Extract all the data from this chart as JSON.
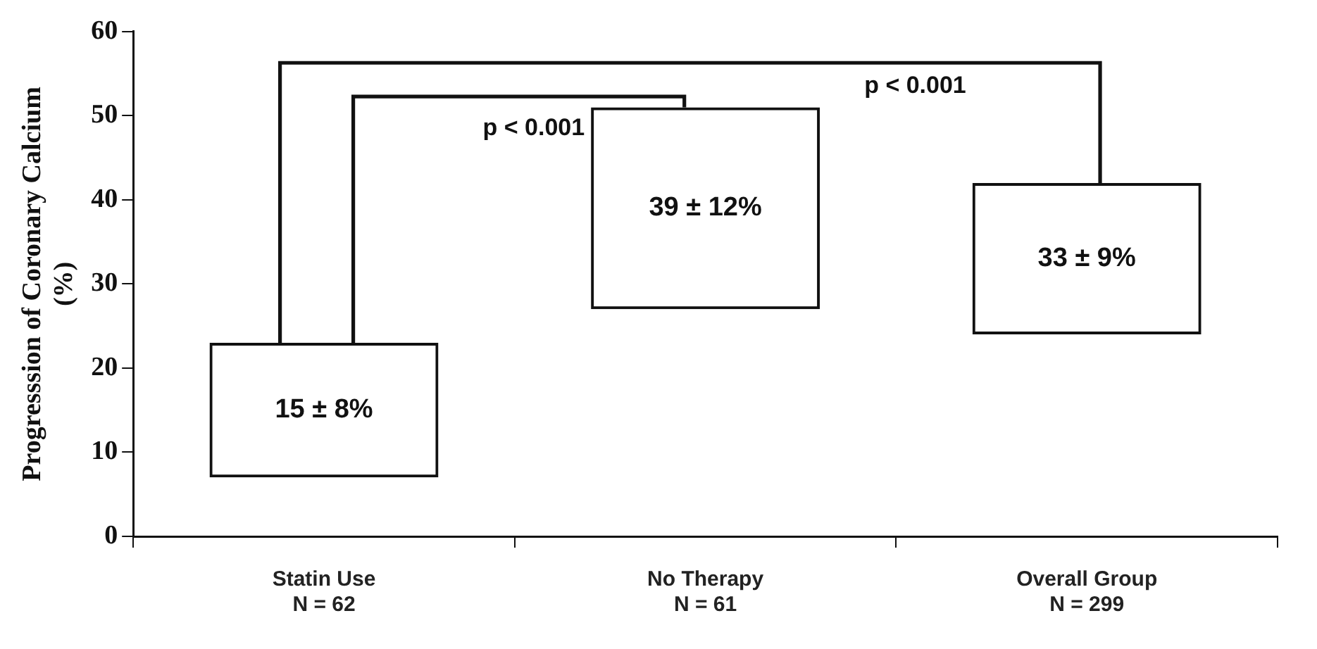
{
  "chart_data": {
    "type": "bar",
    "ylabel": "Progresssion of Coronary Calcium\n(%)",
    "categories": [
      "Statin Use\nN = 62",
      "No Therapy\nN = 61",
      "Overall Group\nN = 299"
    ],
    "base": [
      7,
      27,
      24
    ],
    "values": [
      16,
      24,
      18
    ],
    "color": "#111111",
    "ylim": [
      0,
      60
    ],
    "yticks": [
      0,
      10,
      20,
      30,
      40,
      50,
      60
    ],
    "grid": false,
    "legend": false,
    "annotations": [
      "15 ± 8%",
      "39 ± 12%",
      "33 ± 9%",
      "p < 0.001",
      "p < 0.001"
    ]
  }
}
